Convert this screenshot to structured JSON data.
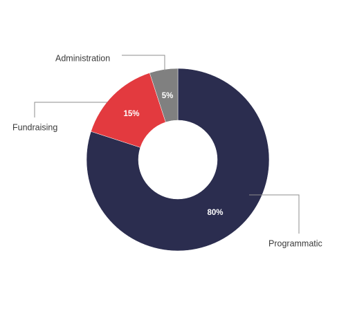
{
  "chart_data": {
    "type": "pie",
    "variant": "donut",
    "categories": [
      "Programmatic",
      "Fundraising",
      "Administration"
    ],
    "values": [
      80,
      15,
      5
    ],
    "data_labels": [
      "80%",
      "15%",
      "5%"
    ],
    "colors": [
      "#2b2d4f",
      "#e33a3f",
      "#808080"
    ],
    "title": "",
    "legend": "none"
  }
}
